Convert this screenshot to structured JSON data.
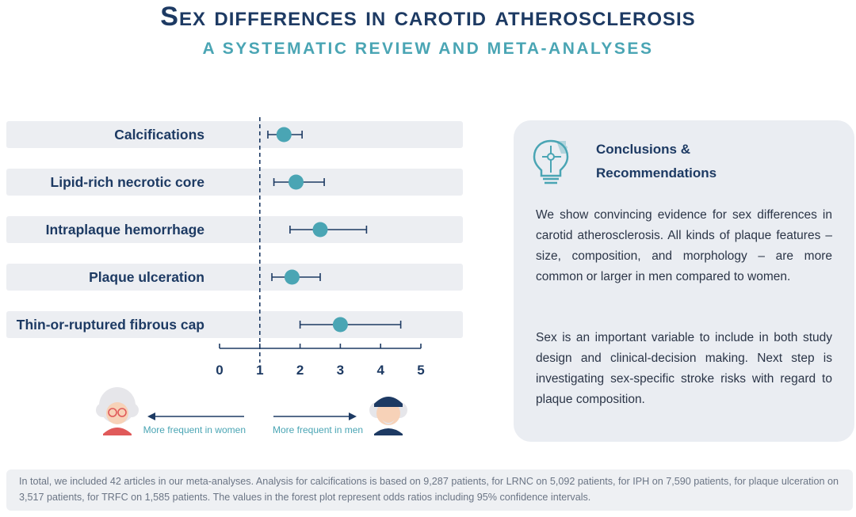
{
  "header": {
    "title": "Sex differences in carotid atherosclerosis",
    "subtitle": "A SYSTEMATIC REVIEW AND META-ANALYSES"
  },
  "chart_data": {
    "type": "forest",
    "categories": [
      "Calcifications",
      "Lipid-rich necrotic core",
      "Intraplaque hemorrhage",
      "Plaque ulceration",
      "Thin-or-ruptured fibrous cap"
    ],
    "estimates": [
      1.6,
      1.9,
      2.5,
      1.8,
      3.0
    ],
    "ci_low": [
      1.2,
      1.35,
      1.75,
      1.3,
      2.0
    ],
    "ci_high": [
      2.05,
      2.6,
      3.65,
      2.5,
      4.5
    ],
    "reference_line": 1,
    "xlim": [
      0,
      5
    ],
    "xticks": [
      "0",
      "1",
      "2",
      "3",
      "4",
      "5"
    ],
    "direction_labels": {
      "left": "More frequent in women",
      "right": "More frequent in men"
    },
    "colors": {
      "point": "#4aa5b4",
      "line": "#1d3a63",
      "rowbg": "#eceef2"
    }
  },
  "conclusions": {
    "heading_line1": "Conclusions &",
    "heading_line2": "Recommendations",
    "paragraph1": "We show convincing evidence for sex differences in carotid atherosclerosis. All kinds of plaque features – size, composition, and morphology – are more common or larger in men compared to women.",
    "paragraph2": "Sex is an important variable to include in both study design and clinical-decision making. Next step is investigating sex-specific stroke risks with regard to plaque composition."
  },
  "footer": {
    "text": "In total, we included 42 articles in our meta-analyses. Analysis for calcifications is based on 9,287 patients, for LRNC on 5,092 patients, for IPH on 7,590 patients, for plaque ulceration on 3,517 patients, for TRFC on 1,585 patients. The values in the forest plot represent odds ratios including 95% confidence intervals."
  }
}
